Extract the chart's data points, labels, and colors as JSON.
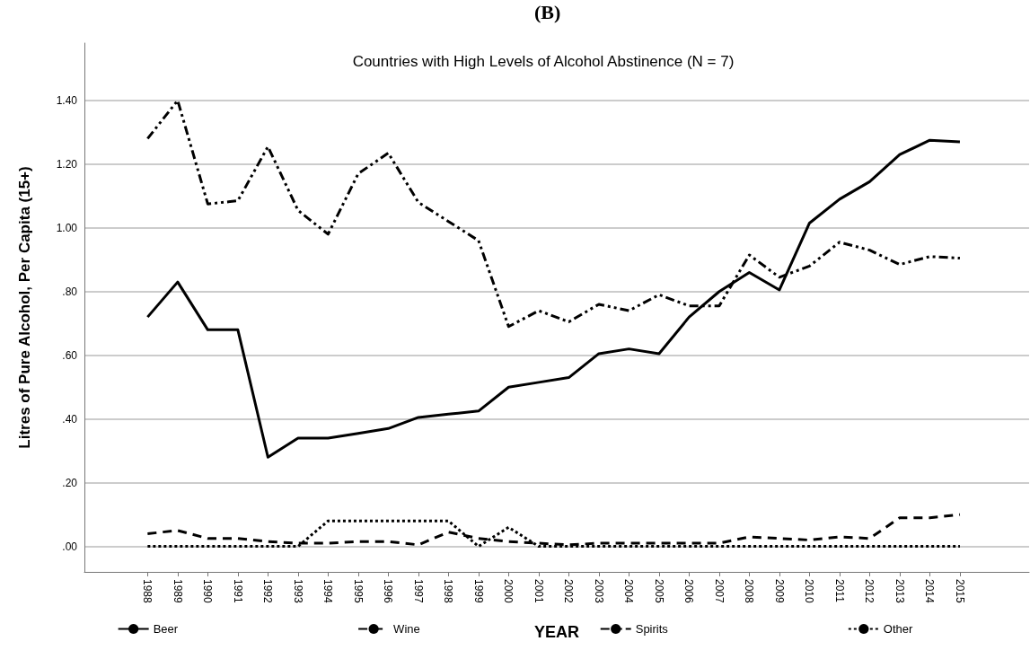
{
  "chart_data": {
    "type": "line",
    "title": "Countries with High Levels of Alcohol Abstinence (N = 7)",
    "annotations": [
      "(B)"
    ],
    "xlabel": "YEAR",
    "ylabel": "Litres of Pure Alcohol, Per Capita (15+)",
    "categories": [
      "1988",
      "1989",
      "1990",
      "1991",
      "1992",
      "1993",
      "1994",
      "1995",
      "1996",
      "1997",
      "1998",
      "1999",
      "2000",
      "2001",
      "2002",
      "2003",
      "2004",
      "2005",
      "2006",
      "2007",
      "2008",
      "2009",
      "2010",
      "2011",
      "2012",
      "2013",
      "2014",
      "2015"
    ],
    "series": [
      {
        "name": "Beer",
        "color": "#000000",
        "line_style": "solid",
        "values": [
          0.72,
          0.83,
          0.68,
          0.68,
          0.28,
          0.34,
          0.34,
          0.355,
          0.37,
          0.405,
          0.415,
          0.425,
          0.5,
          0.515,
          0.53,
          0.605,
          0.62,
          0.605,
          0.72,
          0.8,
          0.86,
          0.805,
          1.015,
          1.09,
          1.145,
          1.23,
          1.275,
          1.27
        ]
      },
      {
        "name": "Wine",
        "color": "#000000",
        "line_style": "dashed",
        "values": [
          0.04,
          0.05,
          0.025,
          0.025,
          0.015,
          0.01,
          0.01,
          0.015,
          0.015,
          0.005,
          0.045,
          0.025,
          0.015,
          0.01,
          0.005,
          0.01,
          0.01,
          0.01,
          0.01,
          0.01,
          0.03,
          0.025,
          0.02,
          0.03,
          0.025,
          0.09,
          0.09,
          0.1
        ]
      },
      {
        "name": "Spirits",
        "color": "#000000",
        "line_style": "dashdot",
        "values": [
          1.28,
          1.4,
          1.075,
          1.085,
          1.255,
          1.055,
          0.98,
          1.17,
          1.235,
          1.08,
          1.02,
          0.96,
          0.69,
          0.74,
          0.705,
          0.76,
          0.74,
          0.79,
          0.755,
          0.755,
          0.915,
          0.845,
          0.88,
          0.955,
          0.93,
          0.885,
          0.91,
          0.905
        ]
      },
      {
        "name": "Other",
        "color": "#000000",
        "line_style": "dotted",
        "values": [
          0,
          0,
          0,
          0,
          0,
          0,
          0.08,
          0.08,
          0.08,
          0.08,
          0.08,
          0,
          0.06,
          0,
          0,
          0,
          0,
          0,
          0,
          0,
          0,
          0,
          0,
          0,
          0,
          0,
          0,
          0
        ]
      }
    ],
    "ylim": [
      -0.08,
      1.58
    ],
    "yticks": [
      {
        "value": 0,
        "label": ".00"
      },
      {
        "value": 0.2,
        "label": ".20"
      },
      {
        "value": 0.4,
        "label": ".40"
      },
      {
        "value": 0.6,
        "label": ".60"
      },
      {
        "value": 0.8,
        "label": ".80"
      },
      {
        "value": 1.0,
        "label": "1.00"
      },
      {
        "value": 1.2,
        "label": "1.20"
      },
      {
        "value": 1.4,
        "label": "1.40"
      }
    ],
    "grid": "y",
    "legend": "bottom",
    "marker": "none"
  }
}
